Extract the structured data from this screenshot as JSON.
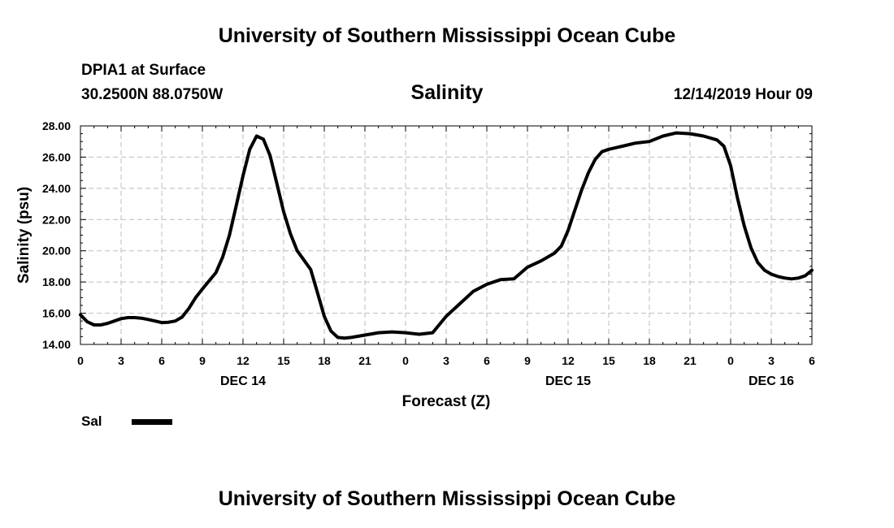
{
  "header": {
    "title": "University of Southern Mississippi Ocean Cube",
    "station": "DPIA1 at Surface",
    "location": "30.2500N 88.0750W",
    "variable": "Salinity",
    "datetime": "12/14/2019 Hour 09"
  },
  "footer": {
    "title": "University of Southern Mississippi Ocean Cube"
  },
  "legend": {
    "label": "Sal"
  },
  "chart_data": {
    "type": "line",
    "title": "Salinity",
    "xlabel": "Forecast (Z)",
    "ylabel": "Salinity (psu)",
    "xlim": [
      0,
      54
    ],
    "ylim": [
      14,
      28
    ],
    "grid": true,
    "x_ticks": [
      {
        "x": 0,
        "label": "0"
      },
      {
        "x": 3,
        "label": "3"
      },
      {
        "x": 6,
        "label": "6"
      },
      {
        "x": 9,
        "label": "9"
      },
      {
        "x": 12,
        "label": "12"
      },
      {
        "x": 15,
        "label": "15"
      },
      {
        "x": 18,
        "label": "18"
      },
      {
        "x": 21,
        "label": "21"
      },
      {
        "x": 24,
        "label": "0"
      },
      {
        "x": 27,
        "label": "3"
      },
      {
        "x": 30,
        "label": "6"
      },
      {
        "x": 33,
        "label": "9"
      },
      {
        "x": 36,
        "label": "12"
      },
      {
        "x": 39,
        "label": "15"
      },
      {
        "x": 42,
        "label": "18"
      },
      {
        "x": 45,
        "label": "21"
      },
      {
        "x": 48,
        "label": "0"
      },
      {
        "x": 51,
        "label": "3"
      },
      {
        "x": 54,
        "label": "6"
      }
    ],
    "day_labels": [
      {
        "x": 12,
        "label": "DEC 14"
      },
      {
        "x": 36,
        "label": "DEC 15"
      },
      {
        "x": 51,
        "label": "DEC 16"
      }
    ],
    "y_ticks": [
      {
        "y": 14,
        "label": "14.00"
      },
      {
        "y": 16,
        "label": "16.00"
      },
      {
        "y": 18,
        "label": "18.00"
      },
      {
        "y": 20,
        "label": "20.00"
      },
      {
        "y": 22,
        "label": "22.00"
      },
      {
        "y": 24,
        "label": "24.00"
      },
      {
        "y": 26,
        "label": "26.00"
      },
      {
        "y": 28,
        "label": "28.00"
      }
    ],
    "series": [
      {
        "name": "Sal",
        "color": "#000000",
        "x": [
          0,
          0.5,
          1,
          1.5,
          2,
          2.5,
          3,
          3.5,
          4,
          4.5,
          5,
          5.5,
          6,
          6.5,
          7,
          7.5,
          8,
          8.5,
          9,
          10,
          10.5,
          11,
          11.5,
          12,
          12.5,
          13,
          13.5,
          14,
          14.5,
          15,
          15.5,
          16,
          16.5,
          17,
          17.5,
          18,
          18.5,
          19,
          19.5,
          20,
          21,
          22,
          23,
          24,
          25,
          26,
          27,
          28,
          29,
          30,
          31,
          32,
          33,
          34,
          35,
          35.5,
          36,
          36.5,
          37,
          37.5,
          38,
          38.5,
          39,
          39.5,
          40,
          41,
          42,
          43,
          44,
          45,
          46,
          47,
          47.5,
          48,
          48.5,
          49,
          49.5,
          50,
          50.5,
          51,
          51.5,
          52,
          52.5,
          53,
          53.5,
          54
        ],
        "values": [
          15.9,
          15.45,
          15.25,
          15.25,
          15.35,
          15.5,
          15.65,
          15.72,
          15.72,
          15.68,
          15.6,
          15.5,
          15.4,
          15.42,
          15.5,
          15.75,
          16.3,
          17.0,
          17.55,
          18.6,
          19.6,
          21.0,
          22.9,
          24.8,
          26.5,
          27.35,
          27.15,
          26.1,
          24.3,
          22.5,
          21.1,
          20.0,
          19.4,
          18.8,
          17.3,
          15.8,
          14.85,
          14.45,
          14.4,
          14.45,
          14.6,
          14.75,
          14.8,
          14.75,
          14.65,
          14.75,
          15.8,
          16.6,
          17.4,
          17.85,
          18.15,
          18.2,
          18.95,
          19.35,
          19.85,
          20.3,
          21.3,
          22.6,
          23.9,
          25.0,
          25.85,
          26.35,
          26.5,
          26.6,
          26.7,
          26.9,
          27.0,
          27.35,
          27.55,
          27.5,
          27.35,
          27.1,
          26.7,
          25.45,
          23.4,
          21.6,
          20.2,
          19.25,
          18.75,
          18.5,
          18.35,
          18.25,
          18.2,
          18.25,
          18.4,
          18.75
        ]
      }
    ]
  }
}
